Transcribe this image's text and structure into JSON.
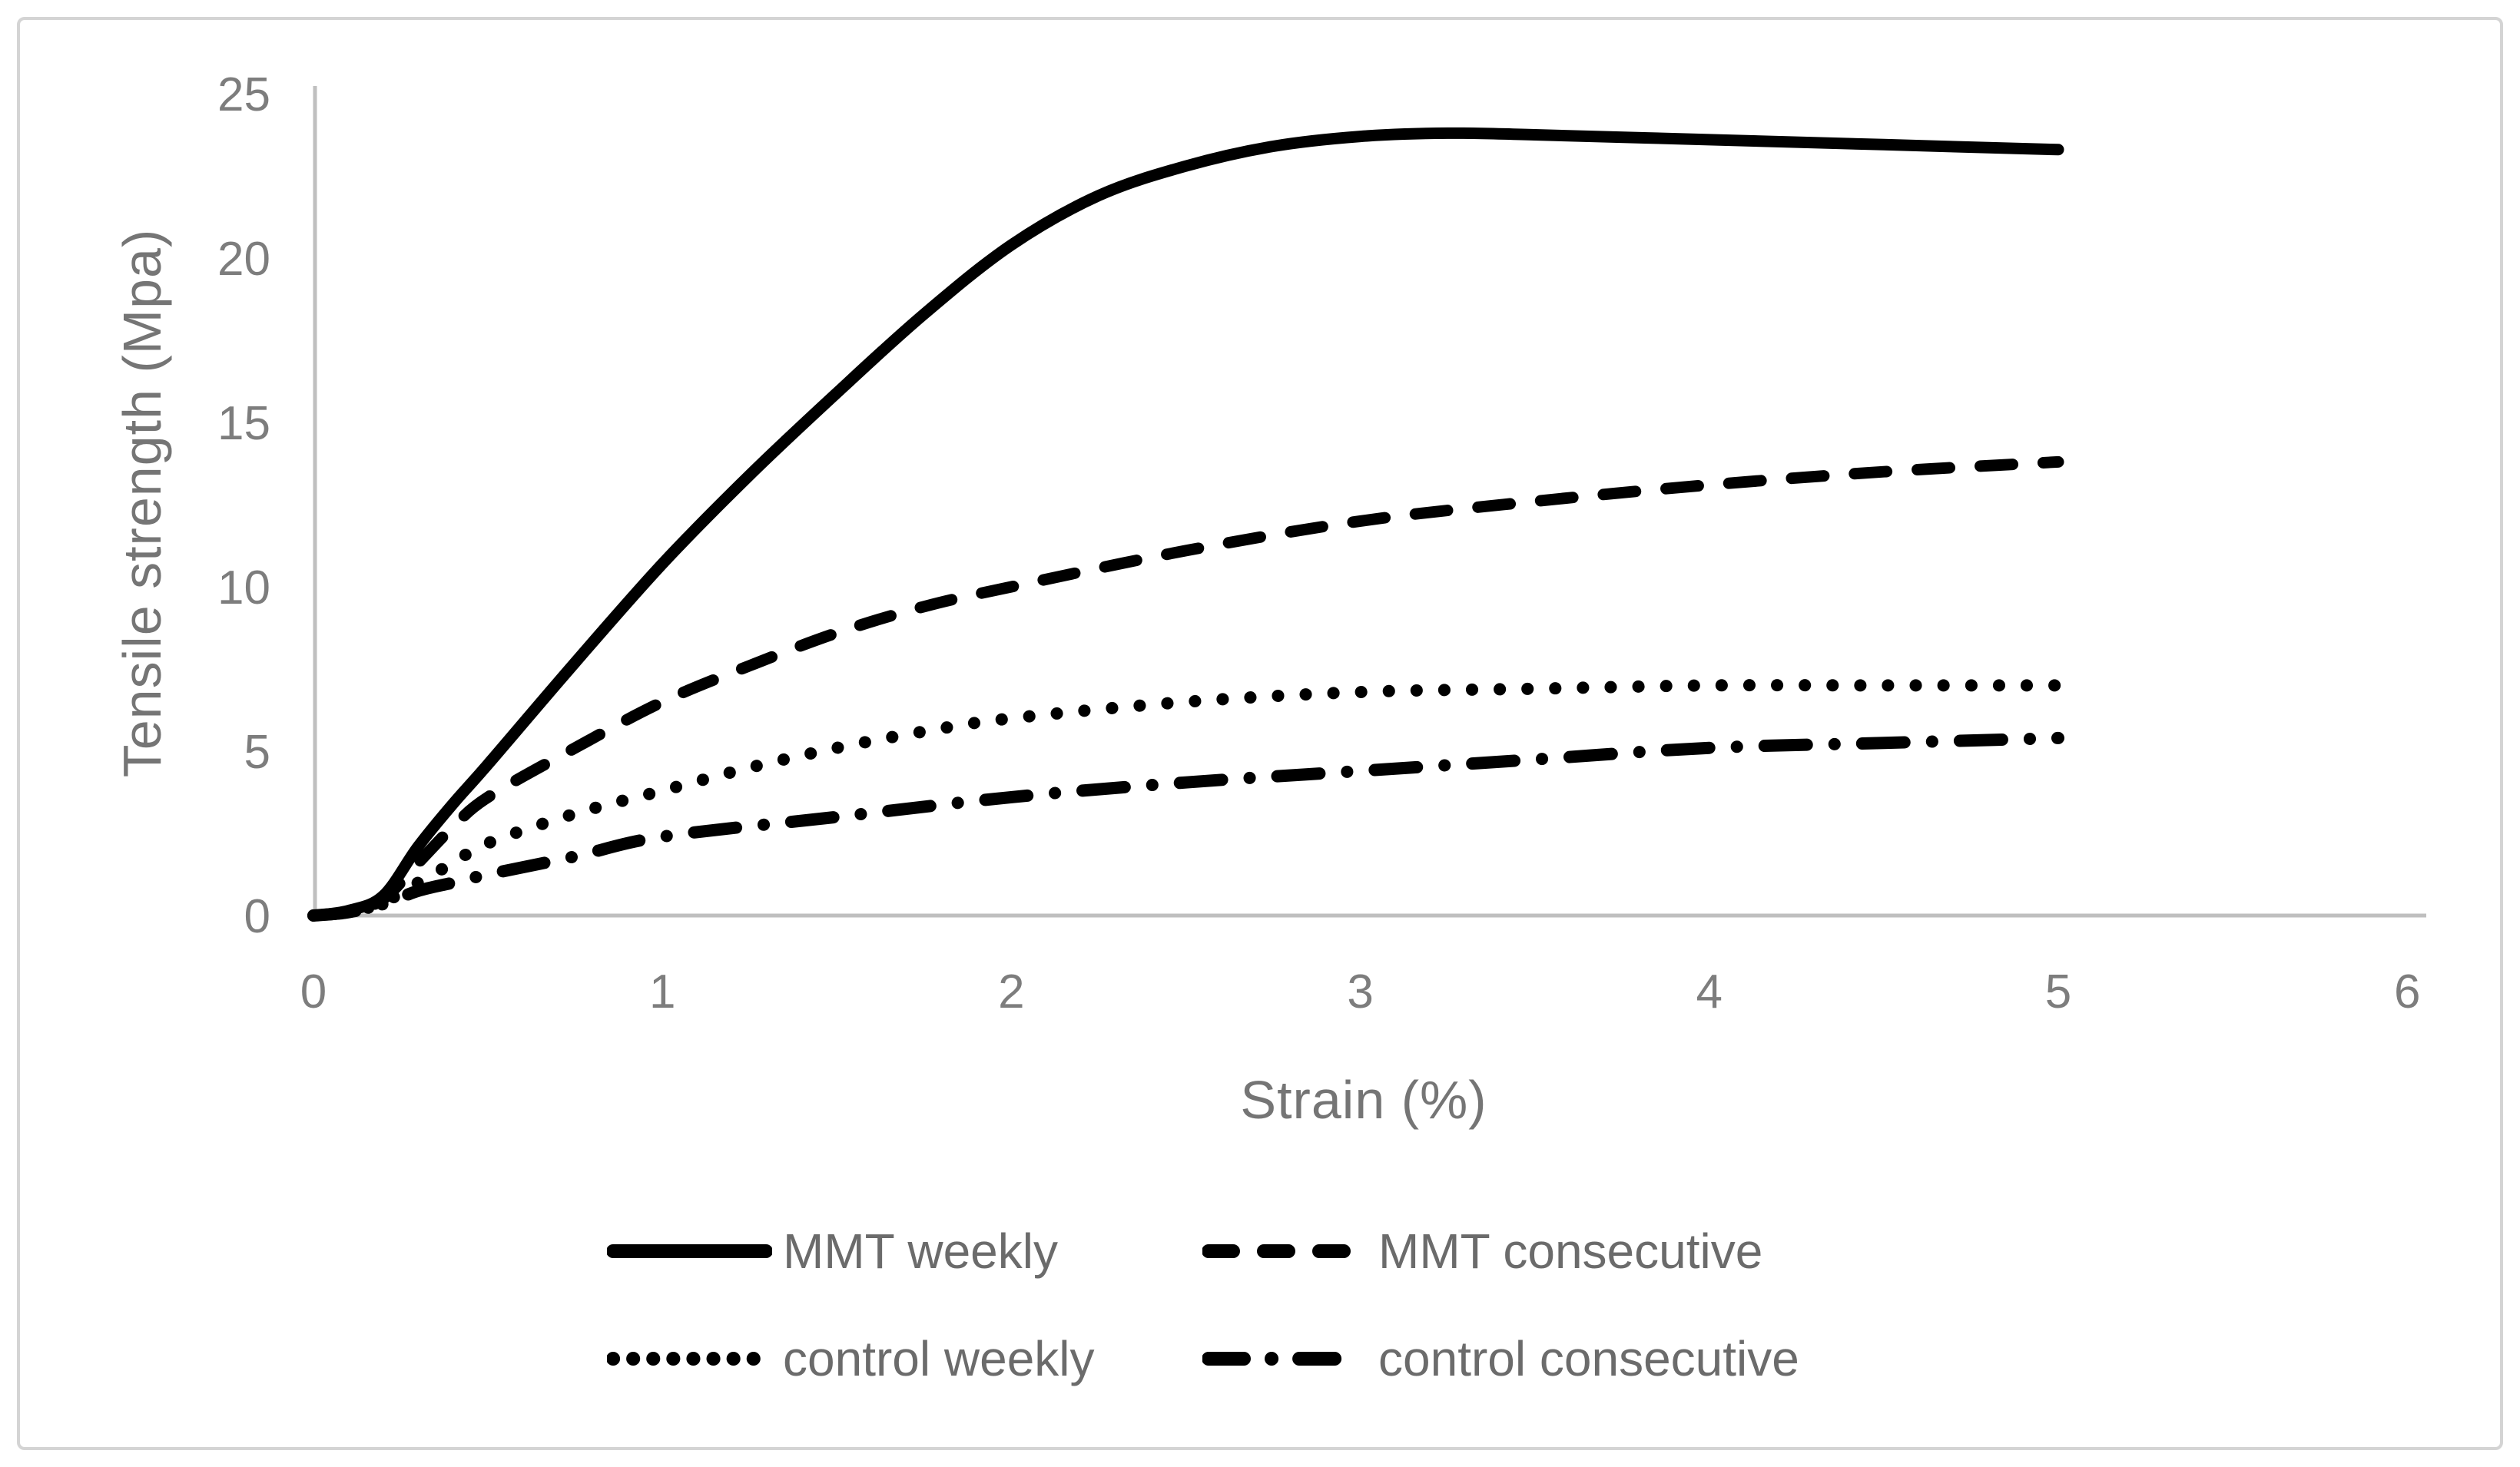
{
  "figure": {
    "background_color": "#ffffff",
    "border_color": "#d4d4d4"
  },
  "chart_data": {
    "type": "line",
    "title": "",
    "xlabel": "Strain (%)",
    "ylabel": "Tensile strength (Mpa)",
    "xlim": [
      0,
      6
    ],
    "ylim": [
      0,
      25
    ],
    "x_ticks": [
      0,
      1,
      2,
      3,
      4,
      5,
      6
    ],
    "y_ticks": [
      0,
      5,
      10,
      15,
      20,
      25
    ],
    "grid": false,
    "legend_position": "bottom",
    "axis_color": "#bfbfbf",
    "tick_label_color": "#7d7d7d",
    "axis_title_color": "#757575",
    "legend_text_color": "#6b6b6b",
    "line_color": "#000000",
    "series": [
      {
        "name": "MMT weekly",
        "style": "solid",
        "dash": "",
        "stroke_width": 15,
        "points": [
          [
            0,
            0
          ],
          [
            0.1,
            0.15
          ],
          [
            0.2,
            0.6
          ],
          [
            0.3,
            2.1
          ],
          [
            0.4,
            3.4
          ],
          [
            0.5,
            4.6
          ],
          [
            0.75,
            7.7
          ],
          [
            1,
            10.7
          ],
          [
            1.25,
            13.4
          ],
          [
            1.5,
            15.9
          ],
          [
            1.75,
            18.3
          ],
          [
            2,
            20.4
          ],
          [
            2.25,
            21.9
          ],
          [
            2.5,
            22.8
          ],
          [
            2.75,
            23.4
          ],
          [
            3,
            23.7
          ],
          [
            3.25,
            23.8
          ],
          [
            3.5,
            23.75
          ],
          [
            4,
            23.6
          ],
          [
            4.5,
            23.45
          ],
          [
            5,
            23.3
          ]
        ]
      },
      {
        "name": "MMT consecutive",
        "style": "dashed",
        "dash": "42 40",
        "stroke_width": 15,
        "points": [
          [
            0,
            0
          ],
          [
            0.1,
            0.1
          ],
          [
            0.2,
            0.5
          ],
          [
            0.3,
            1.6
          ],
          [
            0.4,
            2.7
          ],
          [
            0.5,
            3.6
          ],
          [
            0.75,
            5.1
          ],
          [
            1,
            6.5
          ],
          [
            1.25,
            7.6
          ],
          [
            1.5,
            8.6
          ],
          [
            1.75,
            9.4
          ],
          [
            2,
            10.0
          ],
          [
            2.5,
            11.1
          ],
          [
            3,
            12.0
          ],
          [
            3.5,
            12.6
          ],
          [
            4,
            13.1
          ],
          [
            4.5,
            13.5
          ],
          [
            5,
            13.8
          ]
        ]
      },
      {
        "name": "control weekly",
        "style": "dotted",
        "dash": "0.1 36",
        "stroke_width": 16,
        "points": [
          [
            0,
            0
          ],
          [
            0.1,
            0.1
          ],
          [
            0.2,
            0.4
          ],
          [
            0.3,
            1.0
          ],
          [
            0.4,
            1.6
          ],
          [
            0.5,
            2.2
          ],
          [
            0.75,
            3.1
          ],
          [
            1,
            3.8
          ],
          [
            1.25,
            4.5
          ],
          [
            1.5,
            5.1
          ],
          [
            1.75,
            5.6
          ],
          [
            2,
            6.0
          ],
          [
            2.5,
            6.5
          ],
          [
            3,
            6.8
          ],
          [
            3.5,
            6.9
          ],
          [
            4,
            7.0
          ],
          [
            4.5,
            7.0
          ],
          [
            5,
            7.0
          ]
        ]
      },
      {
        "name": "control consecutive",
        "style": "dash-dot",
        "dash": "55 36 0.1 36",
        "stroke_width": 16,
        "points": [
          [
            0,
            0
          ],
          [
            0.1,
            0.1
          ],
          [
            0.2,
            0.35
          ],
          [
            0.3,
            0.75
          ],
          [
            0.4,
            1.0
          ],
          [
            0.5,
            1.25
          ],
          [
            0.75,
            1.8
          ],
          [
            1,
            2.4
          ],
          [
            1.5,
            3.0
          ],
          [
            2,
            3.6
          ],
          [
            2.5,
            4.05
          ],
          [
            3,
            4.4
          ],
          [
            3.5,
            4.75
          ],
          [
            4,
            5.1
          ],
          [
            4.5,
            5.25
          ],
          [
            5,
            5.4
          ]
        ]
      }
    ]
  }
}
